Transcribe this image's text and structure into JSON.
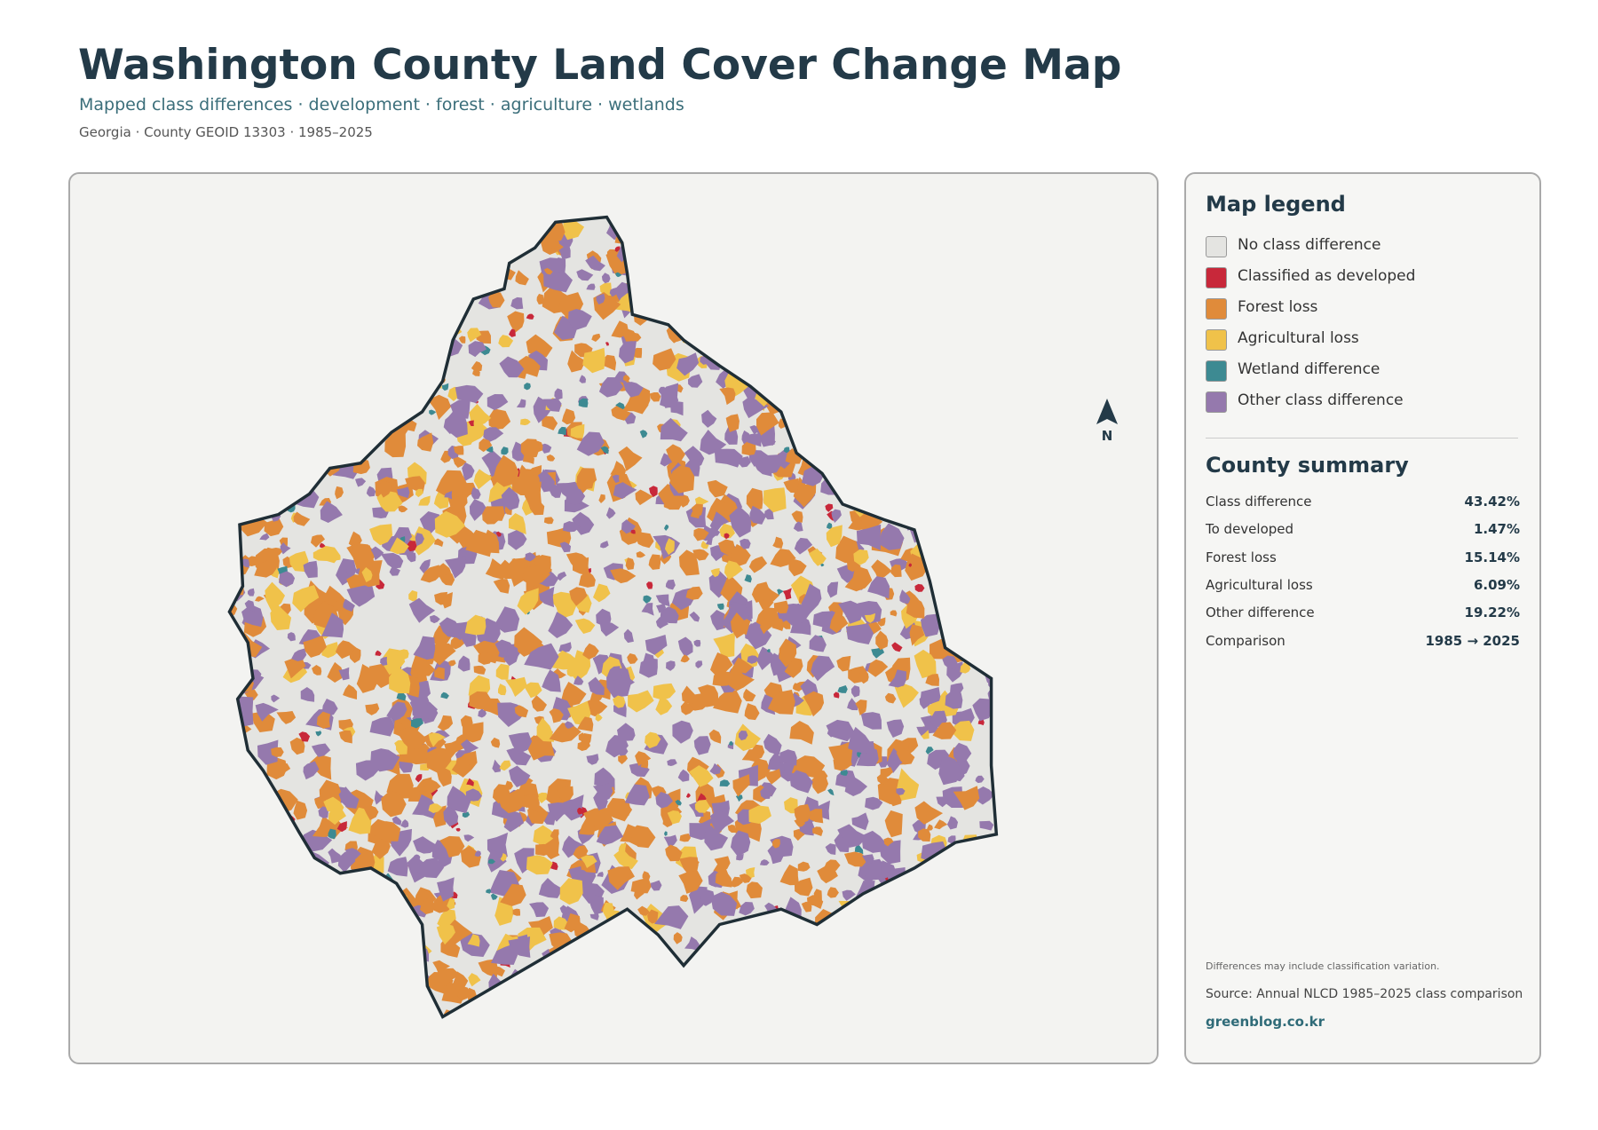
{
  "header": {
    "title": "Washington County Land Cover Change Map",
    "subtitle": "Mapped class differences · development · forest · agriculture · wetlands",
    "meta": "Georgia · County GEOID 13303 · 1985–2025"
  },
  "map": {
    "north_label": "N"
  },
  "legend": {
    "title": "Map legend",
    "items": [
      {
        "label": "No class difference",
        "color": "#e4e4e1"
      },
      {
        "label": "Classified as developed",
        "color": "#c8283a"
      },
      {
        "label": "Forest loss",
        "color": "#e08b3a"
      },
      {
        "label": "Agricultural loss",
        "color": "#f0c24a"
      },
      {
        "label": "Wetland difference",
        "color": "#3d8a92"
      },
      {
        "label": "Other class difference",
        "color": "#9579ad"
      }
    ]
  },
  "summary": {
    "title": "County summary",
    "rows": [
      {
        "label": "Class difference",
        "value": "43.42%"
      },
      {
        "label": "To developed",
        "value": "1.47%"
      },
      {
        "label": "Forest loss",
        "value": "15.14%"
      },
      {
        "label": "Agricultural loss",
        "value": "6.09%"
      },
      {
        "label": "Other difference",
        "value": "19.22%"
      },
      {
        "label": "Comparison",
        "value": "1985 → 2025"
      }
    ]
  },
  "footer": {
    "note": "Differences may include classification variation.",
    "source": "Source: Annual NLCD 1985–2025 class comparison",
    "credit": "greenblog.co.kr"
  }
}
